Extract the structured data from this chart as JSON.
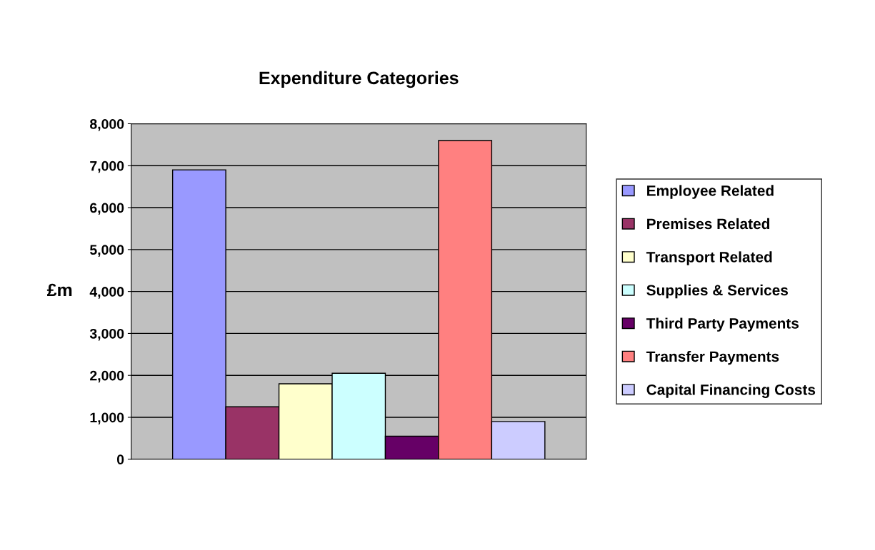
{
  "chart_data": {
    "type": "bar",
    "title": "Expenditure Categories",
    "ylabel": "£m",
    "categories": [
      null
    ],
    "series": [
      {
        "name": "Employee Related",
        "color": "#9999ff",
        "values": [
          6900
        ]
      },
      {
        "name": "Premises Related",
        "color": "#993366",
        "values": [
          1250
        ]
      },
      {
        "name": "Transport Related",
        "color": "#ffffcc",
        "values": [
          1800
        ]
      },
      {
        "name": "Supplies & Services",
        "color": "#ccffff",
        "values": [
          2050
        ]
      },
      {
        "name": "Third Party Payments",
        "color": "#660066",
        "values": [
          550
        ]
      },
      {
        "name": "Transfer Payments",
        "color": "#ff8080",
        "values": [
          7600
        ]
      },
      {
        "name": "Capital Financing Costs",
        "color": "#ccccff",
        "values": [
          900
        ]
      }
    ],
    "ylim": [
      0,
      8000
    ],
    "yticks": [
      0,
      {
        "value": 1000,
        "label": "1,000"
      },
      {
        "value": 2000,
        "label": "2,000"
      },
      {
        "value": 3000,
        "label": "3,000"
      },
      {
        "value": 4000,
        "label": "4,000"
      },
      {
        "value": 5000,
        "label": "5,000"
      },
      {
        "value": 6000,
        "label": "6,000"
      },
      {
        "value": 7000,
        "label": "7,000"
      },
      {
        "value": 8000,
        "label": "8,000"
      }
    ],
    "grid": "y",
    "legend": "right"
  }
}
